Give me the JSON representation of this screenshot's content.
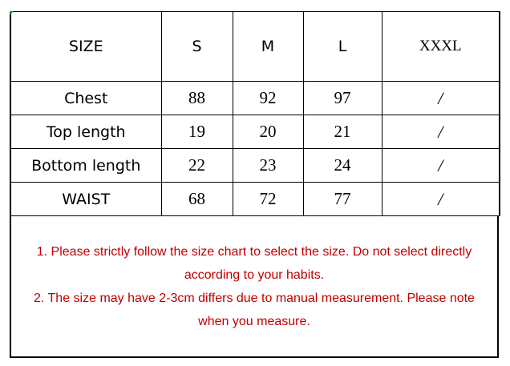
{
  "table": {
    "headers": [
      "SIZE",
      "S",
      "M",
      "L",
      "XXXL"
    ],
    "rows": [
      {
        "label": "Chest",
        "values": [
          "88",
          "92",
          "97",
          "/"
        ]
      },
      {
        "label": "Top length",
        "values": [
          "19",
          "20",
          "21",
          "/"
        ]
      },
      {
        "label": "Bottom length",
        "values": [
          "22",
          "23",
          "24",
          "/"
        ]
      },
      {
        "label": "WAIST",
        "values": [
          "68",
          "72",
          "77",
          "/"
        ]
      }
    ]
  },
  "notes": [
    "1. Please strictly follow the size chart  to select the size. Do not select directly according to your habits.",
    "2. The size may have 2-3cm differs due to manual measurement. Please note when you measure."
  ],
  "colors": {
    "note_text": "#c00000",
    "border": "#000000"
  }
}
